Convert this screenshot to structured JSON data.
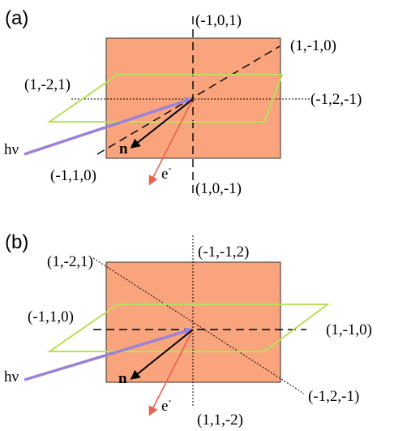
{
  "panel_a": {
    "label": "(a)",
    "dir_top": "(-1,0,1)",
    "dir_bottom": "(1,0,-1)",
    "dir_upper_right": "(1,-1,0)",
    "dir_lower_left": "(-1,1,0)",
    "dir_left": "(1,-2,1)",
    "dir_right": "(-1,2,-1)",
    "photon": "hν",
    "normal": "n",
    "electron": "e",
    "electron_sup": "-"
  },
  "panel_b": {
    "label": "(b)",
    "dir_top": "(-1,-1,2)",
    "dir_bottom": "(1,1,-2)",
    "dir_upper_left": "(1,-2,1)",
    "dir_lower_right": "(-1,2,-1)",
    "dir_left": "(-1,1,0)",
    "dir_right": "(1,-1,0)",
    "photon": "hν",
    "normal": "n",
    "electron": "e",
    "electron_sup": "-"
  },
  "colors": {
    "crystal_fill": "#f9a47c",
    "crystal_stroke": "#333333",
    "plane_stroke": "#b9e05a",
    "photon_arrow": "#9b82d6",
    "electron_arrow": "#e8614a",
    "normal_arrow": "#000000"
  }
}
